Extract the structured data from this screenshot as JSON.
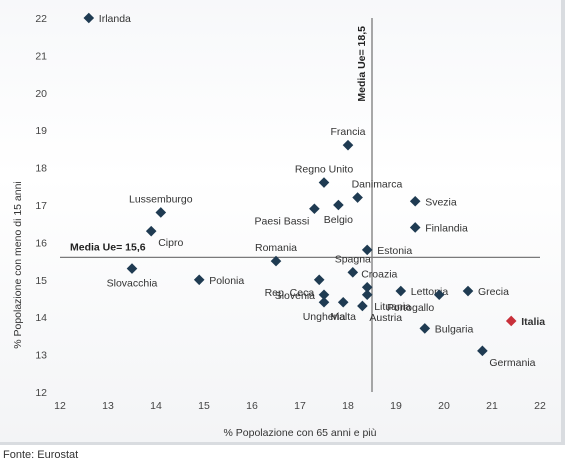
{
  "source_note": "Fonte: Eurostat",
  "chart_data": {
    "type": "scatter",
    "xlabel": "% Popolazione con 65 anni e più",
    "ylabel": "% Popolazione con meno di 15 anni",
    "xlim": [
      12,
      22
    ],
    "ylim": [
      12,
      22
    ],
    "xticks": [
      12,
      13,
      14,
      15,
      16,
      17,
      18,
      19,
      20,
      21,
      22
    ],
    "yticks": [
      12,
      13,
      14,
      15,
      16,
      17,
      18,
      19,
      20,
      21,
      22
    ],
    "grid": false,
    "point_color": "#1f3b52",
    "highlight_color": "#c8303a",
    "reference_lines": [
      {
        "axis": "x",
        "value": 18.5,
        "label": "Media Ue= 18,5"
      },
      {
        "axis": "y",
        "value": 15.6,
        "label": "Media Ue= 15,6"
      }
    ],
    "points": [
      {
        "label": "Irlanda",
        "x": 12.6,
        "y": 22.0,
        "pos": "right"
      },
      {
        "label": "Francia",
        "x": 18.0,
        "y": 18.6,
        "pos": "above"
      },
      {
        "label": "Regno Unito",
        "x": 17.5,
        "y": 17.6,
        "pos": "above"
      },
      {
        "label": "Danimarca",
        "x": 18.2,
        "y": 17.2,
        "pos": "above-right"
      },
      {
        "label": "Svezia",
        "x": 19.4,
        "y": 17.1,
        "pos": "right"
      },
      {
        "label": "Paesi Bassi",
        "x": 17.3,
        "y": 16.9,
        "pos": "below-left"
      },
      {
        "label": "Belgio",
        "x": 17.8,
        "y": 17.0,
        "pos": "below"
      },
      {
        "label": "Finlandia",
        "x": 19.4,
        "y": 16.4,
        "pos": "right"
      },
      {
        "label": "Lussemburgo",
        "x": 14.1,
        "y": 16.8,
        "pos": "above"
      },
      {
        "label": "Cipro",
        "x": 13.9,
        "y": 16.3,
        "pos": "below-right"
      },
      {
        "label": "Estonia",
        "x": 18.4,
        "y": 15.8,
        "pos": "right"
      },
      {
        "label": "Romania",
        "x": 16.5,
        "y": 15.5,
        "pos": "above"
      },
      {
        "label": "Slovacchia",
        "x": 13.5,
        "y": 15.3,
        "pos": "below"
      },
      {
        "label": "Polonia",
        "x": 14.9,
        "y": 15.0,
        "pos": "right"
      },
      {
        "label": "Spagna",
        "x": 18.1,
        "y": 15.2,
        "pos": "above"
      },
      {
        "label": "Rep. Ceca",
        "x": 17.4,
        "y": 15.0,
        "pos": "below-left"
      },
      {
        "label": "Croazia",
        "x": 18.4,
        "y": 14.8,
        "pos": "above-right"
      },
      {
        "label": "Lettonia",
        "x": 19.1,
        "y": 14.7,
        "pos": "right"
      },
      {
        "label": "Slovenia",
        "x": 17.5,
        "y": 14.6,
        "pos": "left"
      },
      {
        "label": "Lituania",
        "x": 18.4,
        "y": 14.6,
        "pos": "below-right"
      },
      {
        "label": "Grecia",
        "x": 20.5,
        "y": 14.7,
        "pos": "right"
      },
      {
        "label": "Portogallo",
        "x": 19.9,
        "y": 14.6,
        "pos": "below-left"
      },
      {
        "label": "Ungheria",
        "x": 17.5,
        "y": 14.4,
        "pos": "below"
      },
      {
        "label": "Malta",
        "x": 17.9,
        "y": 14.4,
        "pos": "below"
      },
      {
        "label": "Austria",
        "x": 18.3,
        "y": 14.3,
        "pos": "below-right"
      },
      {
        "label": "Italia",
        "x": 21.4,
        "y": 13.9,
        "pos": "right",
        "highlight": true
      },
      {
        "label": "Bulgaria",
        "x": 19.6,
        "y": 13.7,
        "pos": "right"
      },
      {
        "label": "Germania",
        "x": 20.8,
        "y": 13.1,
        "pos": "below-right"
      }
    ]
  }
}
